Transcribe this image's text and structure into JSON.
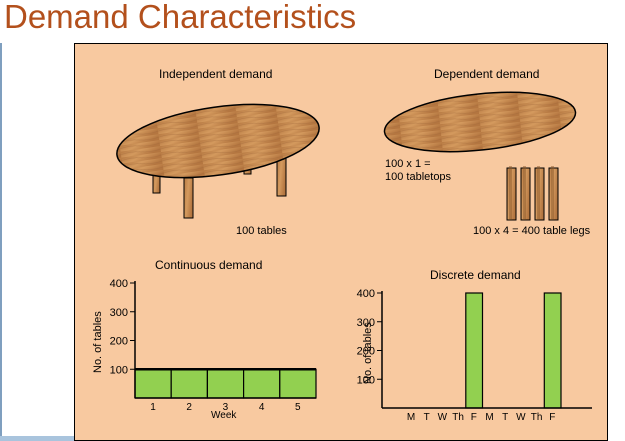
{
  "title": "Demand Characteristics",
  "independent": {
    "heading": "Independent demand",
    "caption": "100 tables"
  },
  "dependent": {
    "heading": "Dependent demand",
    "tops_line1": "100 x 1 =",
    "tops_line2": "100 tabletops",
    "legs_caption": "100 x 4 = 400 table legs"
  },
  "colors": {
    "panel": "#f8c9a0",
    "bar": "#92d050",
    "title": "#b3501c",
    "wood": "#c9874d"
  },
  "chart_data": [
    {
      "type": "bar",
      "title": "Continuous demand",
      "xlabel": "Week",
      "ylabel": "No. of tables",
      "categories": [
        "1",
        "2",
        "3",
        "4",
        "5"
      ],
      "values": [
        100,
        100,
        100,
        100,
        100
      ],
      "yticks": [
        "100",
        "200",
        "300",
        "400"
      ],
      "ylim": [
        0,
        400
      ]
    },
    {
      "type": "bar",
      "title": "Discrete demand",
      "xlabel": "",
      "ylabel": "No. of tables",
      "categories": [
        "M",
        "T",
        "W",
        "Th",
        "F",
        "M",
        "T",
        "W",
        "Th",
        "F"
      ],
      "values": [
        0,
        0,
        0,
        0,
        400,
        0,
        0,
        0,
        0,
        400
      ],
      "yticks": [
        "100",
        "200",
        "300",
        "400"
      ],
      "ylim": [
        0,
        400
      ]
    }
  ]
}
